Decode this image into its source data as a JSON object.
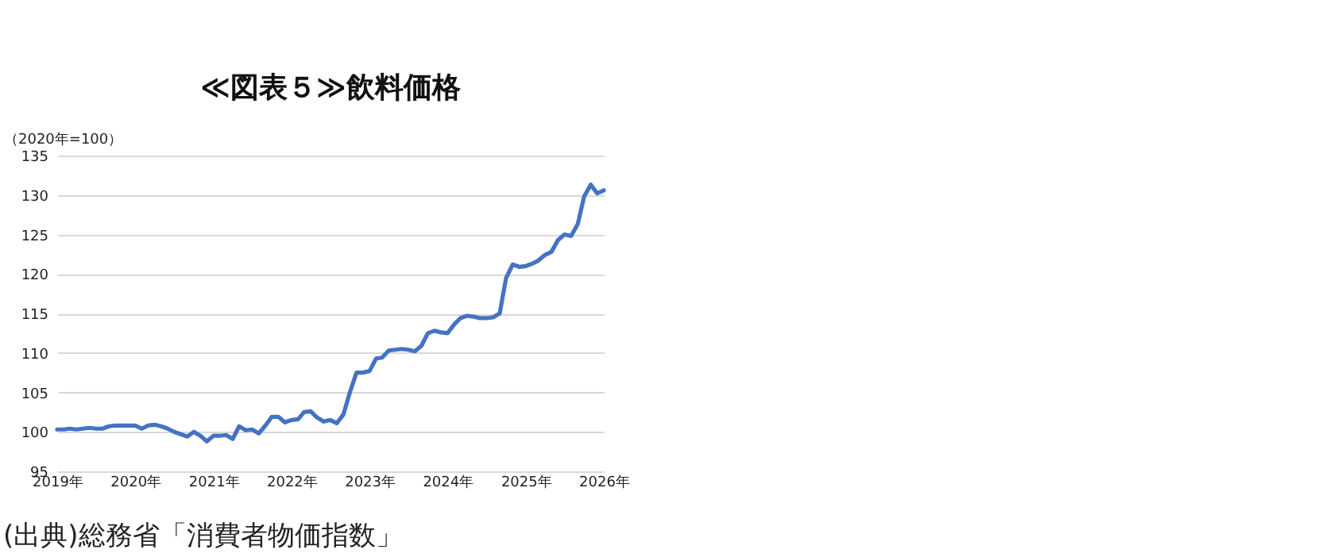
{
  "chart_data": {
    "type": "line",
    "title": "≪図表５≫飲料価格",
    "ylabel": "（2020年=100）",
    "annotations": [
      "(出典)総務省「消費者物価指数」"
    ],
    "x": [
      "2019-01",
      "2019-02",
      "2019-03",
      "2019-04",
      "2019-05",
      "2019-06",
      "2019-07",
      "2019-08",
      "2019-09",
      "2019-10",
      "2019-11",
      "2019-12",
      "2020-01",
      "2020-02",
      "2020-03",
      "2020-04",
      "2020-05",
      "2020-06",
      "2020-07",
      "2020-08",
      "2020-09",
      "2020-10",
      "2020-11",
      "2020-12",
      "2021-01",
      "2021-02",
      "2021-03",
      "2021-04",
      "2021-05",
      "2021-06",
      "2021-07",
      "2021-08",
      "2021-09",
      "2021-10",
      "2021-11",
      "2021-12",
      "2022-01",
      "2022-02",
      "2022-03",
      "2022-04",
      "2022-05",
      "2022-06",
      "2022-07",
      "2022-08",
      "2022-09",
      "2022-10",
      "2022-11",
      "2022-12",
      "2023-01",
      "2023-02",
      "2023-03",
      "2023-04",
      "2023-05",
      "2023-06",
      "2023-07",
      "2023-08",
      "2023-09",
      "2023-10",
      "2023-11",
      "2023-12",
      "2024-01",
      "2024-02",
      "2024-03",
      "2024-04",
      "2024-05",
      "2024-06",
      "2024-07",
      "2024-08",
      "2024-09",
      "2024-10",
      "2024-11",
      "2024-12",
      "2025-01",
      "2025-02",
      "2025-03",
      "2025-04",
      "2025-05",
      "2025-06",
      "2025-07",
      "2025-08",
      "2025-09",
      "2025-10",
      "2025-11",
      "2025-12",
      "2026-01"
    ],
    "series": [
      {
        "color": "#4472c4",
        "values": [
          100.3,
          100.3,
          100.4,
          100.3,
          100.4,
          100.5,
          100.4,
          100.4,
          100.7,
          100.8,
          100.8,
          100.8,
          100.8,
          100.4,
          100.8,
          100.9,
          100.7,
          100.4,
          100.0,
          99.7,
          99.4,
          100.0,
          99.5,
          98.8,
          99.5,
          99.5,
          99.6,
          99.1,
          100.7,
          100.2,
          100.3,
          99.8,
          100.8,
          101.9,
          101.9,
          101.2,
          101.5,
          101.6,
          102.5,
          102.6,
          101.8,
          101.3,
          101.5,
          101.1,
          102.2,
          105.0,
          107.5,
          107.5,
          107.7,
          109.3,
          109.4,
          110.3,
          110.4,
          110.5,
          110.4,
          110.2,
          110.9,
          112.5,
          112.8,
          112.6,
          112.5,
          113.6,
          114.4,
          114.7,
          114.6,
          114.4,
          114.4,
          114.5,
          115.0,
          119.5,
          121.2,
          120.9,
          121.0,
          121.3,
          121.7,
          122.4,
          122.8,
          124.3,
          125.0,
          124.8,
          126.3,
          129.8,
          131.3,
          130.2,
          130.6
        ]
      }
    ],
    "xlim": [
      "2019-01",
      "2026-01"
    ],
    "xticks": [
      {
        "value": "2019-01",
        "label": "2019年"
      },
      {
        "value": "2020-01",
        "label": "2020年"
      },
      {
        "value": "2021-01",
        "label": "2021年"
      },
      {
        "value": "2022-01",
        "label": "2022年"
      },
      {
        "value": "2023-01",
        "label": "2023年"
      },
      {
        "value": "2024-01",
        "label": "2024年"
      },
      {
        "value": "2025-01",
        "label": "2025年"
      },
      {
        "value": "2026-01",
        "label": "2026年"
      }
    ],
    "ylim": [
      95,
      135
    ],
    "yticks": [
      95,
      100,
      105,
      110,
      115,
      120,
      125,
      130,
      135
    ],
    "grid": "y",
    "legend": false,
    "marker": "none",
    "line_style": "solid"
  }
}
